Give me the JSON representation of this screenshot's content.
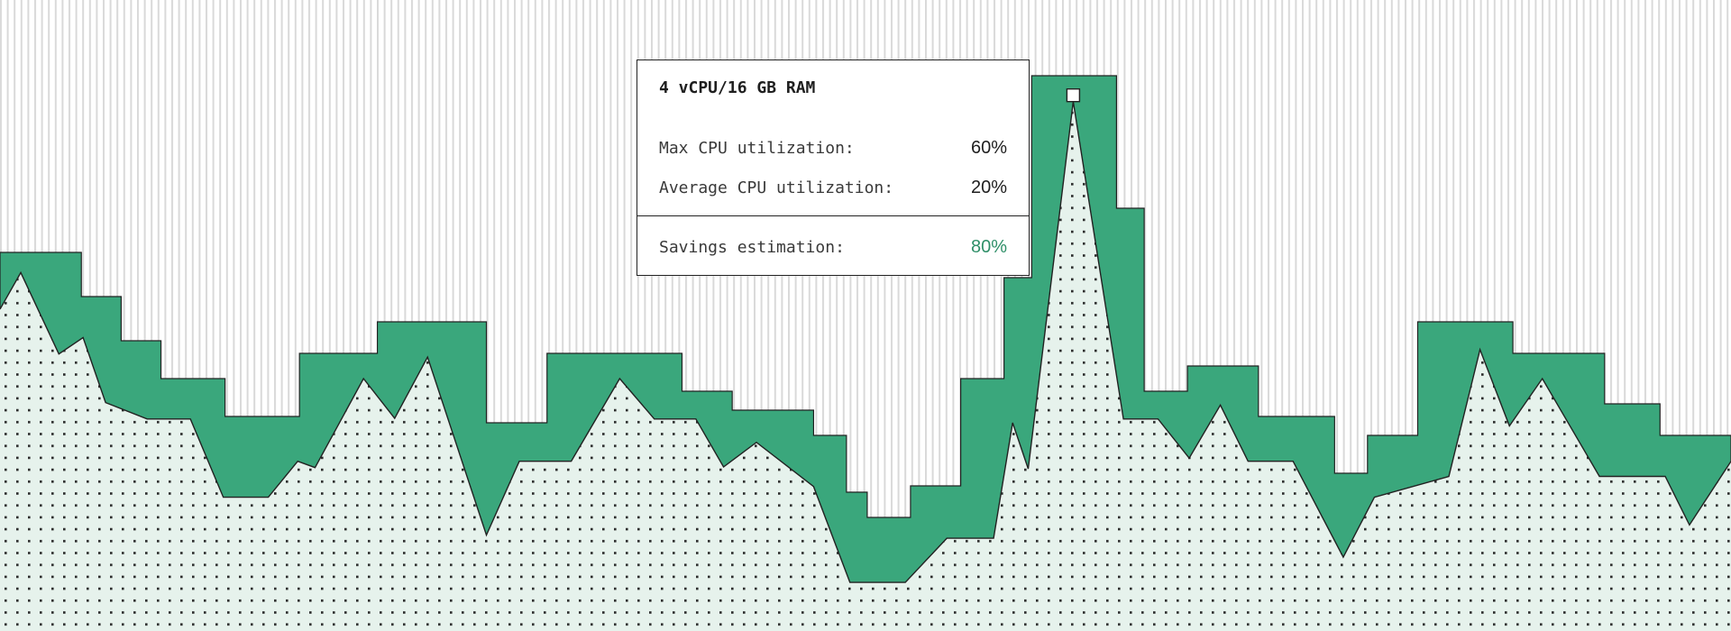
{
  "colors": {
    "provisioned_fill": "#3aa77c",
    "utilization_fill": "#e6f2ec",
    "stroke": "#222222",
    "stripe": "#d9d9d9",
    "accent_text": "#2f8f68"
  },
  "tooltip": {
    "title": "4 vCPU/16 GB RAM",
    "rows": [
      {
        "label": "Max CPU utilization:",
        "value": "60%"
      },
      {
        "label": "Average CPU utilization:",
        "value": "20%"
      }
    ],
    "savings": {
      "label": "Savings estimation:",
      "value": "80%"
    }
  },
  "chart_data": {
    "type": "area",
    "title": "",
    "xlabel": "",
    "ylabel": "",
    "axes_visible": false,
    "grid": false,
    "xlim": [
      0,
      100
    ],
    "ylim": [
      0,
      100
    ],
    "highlight_point": {
      "x": 62.0,
      "y": 83.9
    },
    "series": [
      {
        "style": "step",
        "x": [
          0,
          4.7,
          7.0,
          9.3,
          13.0,
          17.3,
          21.8,
          28.1,
          31.6,
          39.4,
          42.3,
          47.0,
          48.9,
          50.1,
          52.6,
          55.5,
          58.0,
          59.6,
          64.5,
          66.1,
          68.6,
          72.7,
          77.1,
          79.0,
          81.9,
          87.4,
          92.7,
          95.9
        ],
        "values": [
          60,
          53,
          46,
          40,
          34,
          44,
          49,
          33,
          44,
          38,
          35,
          31,
          22,
          18,
          23,
          40,
          56,
          88,
          67,
          38,
          42,
          34,
          25,
          31,
          49,
          44,
          36,
          31
        ]
      },
      {
        "style": "line",
        "x": [
          0,
          1.2,
          3.4,
          4.8,
          6.1,
          8.5,
          11.0,
          12.9,
          15.5,
          17.2,
          18.2,
          21.0,
          22.8,
          24.7,
          28.1,
          30.0,
          33.0,
          35.8,
          37.8,
          40.2,
          41.8,
          43.7,
          47.0,
          49.1,
          52.3,
          54.7,
          57.4,
          58.5,
          59.4,
          62.0,
          64.9,
          66.9,
          68.7,
          70.5,
          72.1,
          74.7,
          77.6,
          79.4,
          83.7,
          85.5,
          87.2,
          89.1,
          92.4,
          96.2,
          97.6,
          100
        ],
        "values": [
          51.0,
          56.8,
          43.9,
          46.5,
          36.2,
          33.6,
          33.6,
          21.2,
          21.2,
          26.9,
          25.9,
          40.0,
          33.7,
          43.4,
          15.2,
          26.9,
          26.9,
          40.0,
          33.6,
          33.6,
          26.0,
          29.9,
          22.9,
          7.7,
          7.7,
          14.7,
          14.7,
          33.0,
          25.7,
          83.9,
          33.6,
          33.6,
          27.4,
          35.8,
          26.9,
          26.9,
          11.7,
          21.2,
          24.5,
          44.6,
          32.5,
          40.0,
          24.5,
          24.5,
          16.8,
          26.9
        ]
      }
    ]
  }
}
